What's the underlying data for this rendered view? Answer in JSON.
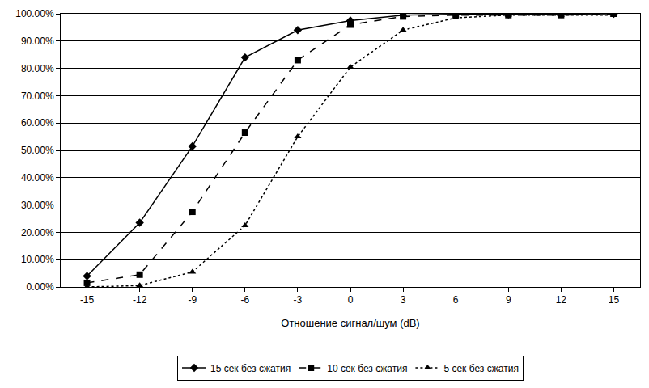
{
  "chart_data": {
    "type": "line",
    "x_label": "Отношение сигнал/шум (dB)",
    "x": [
      -15,
      -12,
      -9,
      -6,
      -3,
      0,
      3,
      6,
      9,
      12,
      15
    ],
    "xlim": [
      -16.5,
      16.5
    ],
    "xticks": [
      -15,
      -12,
      -9,
      -6,
      -3,
      0,
      3,
      6,
      9,
      12,
      15
    ],
    "ylim": [
      0,
      100
    ],
    "yticks": [
      {
        "value": 0,
        "label": "0.00%"
      },
      {
        "value": 10,
        "label": "10.00%"
      },
      {
        "value": 20,
        "label": "20.00%"
      },
      {
        "value": 30,
        "label": "30.00%"
      },
      {
        "value": 40,
        "label": "40.00%"
      },
      {
        "value": 50,
        "label": "50.00%"
      },
      {
        "value": 60,
        "label": "60.00%"
      },
      {
        "value": 70,
        "label": "70.00%"
      },
      {
        "value": 80,
        "label": "80.00%"
      },
      {
        "value": 90,
        "label": "90.00%"
      },
      {
        "value": 100,
        "label": "100.00%"
      }
    ],
    "grid": true,
    "legend": "bottom",
    "series": [
      {
        "name": "15 сек без сжатия",
        "color": "#000000",
        "marker": "diamond",
        "line_style": "solid",
        "values": [
          4,
          23.5,
          51.5,
          84,
          94,
          97.5,
          99.5,
          99.8,
          99.8,
          100,
          100
        ]
      },
      {
        "name": "10 сек без сжатия",
        "color": "#000000",
        "marker": "square",
        "line_style": "dash",
        "values": [
          1.5,
          4.5,
          27.5,
          56.5,
          83,
          96,
          99,
          99.5,
          99.5,
          99.5,
          100
        ]
      },
      {
        "name": "5 сек без сжатия",
        "color": "#000000",
        "marker": "triangle-up",
        "line_style": "dot",
        "values": [
          0,
          0.5,
          5.5,
          22.5,
          55,
          80.5,
          94,
          98.5,
          99.5,
          99.5,
          99.5
        ]
      }
    ]
  }
}
